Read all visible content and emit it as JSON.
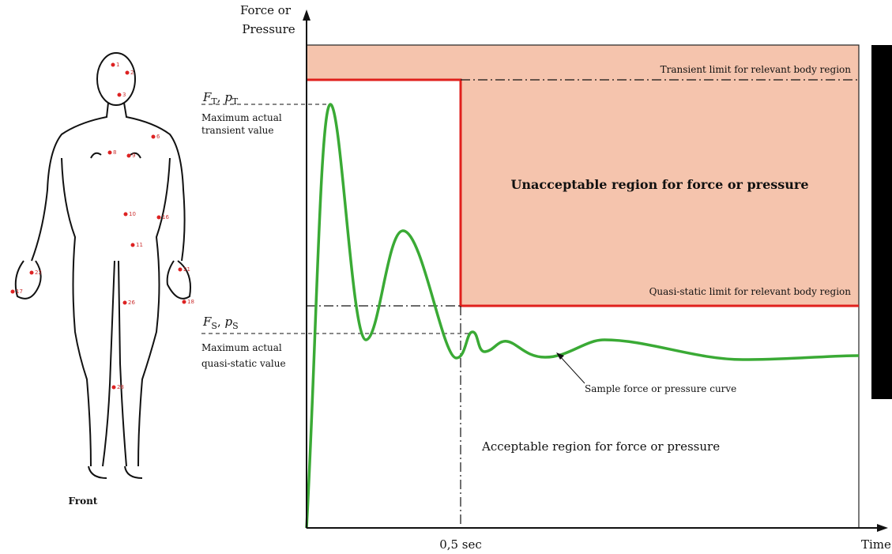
{
  "figure": {
    "caption": "Front",
    "points": [
      "1",
      "2",
      "3",
      "6",
      "8",
      "9",
      "10",
      "16",
      "11",
      "21",
      "22",
      "17",
      "18",
      "26",
      "28"
    ]
  },
  "chart": {
    "y_axis_label": [
      "Force or",
      "Pressure"
    ],
    "x_axis_label": "Time",
    "x_marker": "0,5 sec",
    "transient_limit": "Transient limit for relevant body region",
    "quasi_static_limit": "Quasi-static limit for relevant body region",
    "unacceptable_region": "Unacceptable region for force or pressure",
    "acceptable_region": "Acceptable region for force or pressure",
    "curve_label": "Sample force or pressure curve",
    "transient_symbol": {
      "f": "F",
      "f_sub": "T",
      "sep": ", ",
      "p": "p",
      "p_sub": "T"
    },
    "transient_note": [
      "Maximum actual",
      "transient value"
    ],
    "static_symbol": {
      "f": "F",
      "f_sub": "S",
      "sep": ", ",
      "p": "p",
      "p_sub": "S"
    },
    "static_note": [
      "Maximum actual",
      "quasi-static value"
    ]
  }
}
